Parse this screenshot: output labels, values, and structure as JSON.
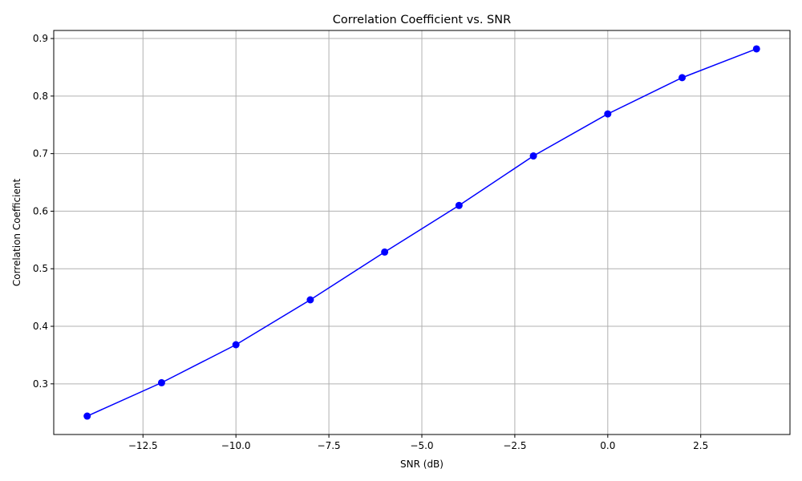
{
  "chart_data": {
    "type": "line",
    "title": "Correlation Coefficient vs. SNR",
    "xlabel": "SNR (dB)",
    "ylabel": "Correlation Coefficient",
    "xlim": [
      -14.9,
      4.9
    ],
    "ylim": [
      0.212,
      0.914
    ],
    "xticks": [
      -12.5,
      -10.0,
      -7.5,
      -5.0,
      -2.5,
      0.0,
      2.5
    ],
    "xtick_labels": [
      "−12.5",
      "−10.0",
      "−7.5",
      "−5.0",
      "−2.5",
      "0.0",
      "2.5"
    ],
    "yticks": [
      0.3,
      0.4,
      0.5,
      0.6,
      0.7,
      0.8,
      0.9
    ],
    "ytick_labels": [
      "0.3",
      "0.4",
      "0.5",
      "0.6",
      "0.7",
      "0.8",
      "0.9"
    ],
    "grid": true,
    "series": [
      {
        "color": "#0000ff",
        "marker": "circle",
        "x": [
          -14,
          -12,
          -10,
          -8,
          -6,
          -4,
          -2,
          0,
          2,
          4
        ],
        "y": [
          0.244,
          0.302,
          0.368,
          0.446,
          0.529,
          0.61,
          0.696,
          0.769,
          0.832,
          0.882
        ]
      }
    ]
  }
}
